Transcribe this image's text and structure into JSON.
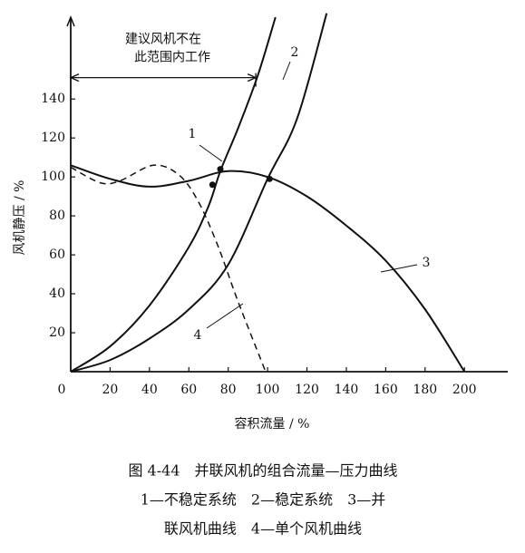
{
  "chart_data": {
    "type": "line",
    "x_label": "容积流量 / %",
    "y_label": "风机静压 / %",
    "xlim": [
      0,
      222
    ],
    "ylim": [
      0,
      182
    ],
    "xticks": [
      0,
      20,
      40,
      60,
      80,
      100,
      120,
      140,
      160,
      180,
      200
    ],
    "yticks": [
      20,
      40,
      60,
      80,
      100,
      120,
      140
    ],
    "series": [
      {
        "name": "1",
        "color": "#111111",
        "dashed": false,
        "x": [
          0,
          20,
          40,
          60,
          70,
          76,
          85,
          95,
          104
        ],
        "values": [
          0,
          13,
          34,
          64,
          85,
          103,
          125,
          152,
          182
        ]
      },
      {
        "name": "2",
        "color": "#111111",
        "dashed": false,
        "x": [
          0,
          20,
          40,
          60,
          80,
          100,
          115,
          130
        ],
        "values": [
          0,
          6,
          17,
          32,
          55,
          99,
          130,
          184
        ]
      },
      {
        "name": "3",
        "color": "#111111",
        "dashed": false,
        "x": [
          0,
          20,
          40,
          60,
          80,
          100,
          120,
          140,
          160,
          180,
          200
        ],
        "values": [
          106,
          99,
          95,
          98,
          103,
          100,
          90,
          75,
          57,
          32,
          0
        ]
      },
      {
        "name": "4",
        "color": "#111111",
        "dashed": true,
        "x": [
          0,
          15,
          25,
          42,
          55,
          65,
          75,
          85,
          99
        ],
        "values": [
          105,
          97,
          98,
          106,
          101,
          87,
          64,
          36,
          0
        ]
      }
    ],
    "points": {
      "x": [
        76,
        72,
        101
      ],
      "values": [
        104,
        96,
        99
      ]
    },
    "annotation": {
      "lines": [
        "建议风机不在",
        "此范围内工作"
      ],
      "x": [
        0,
        94
      ],
      "y": 151
    },
    "caption": [
      "图 4-44　并联风机的组合流量—压力曲线",
      "1—不稳定系统　2—稳定系统　3—并",
      "联风机曲线　4—单个风机曲线"
    ]
  }
}
